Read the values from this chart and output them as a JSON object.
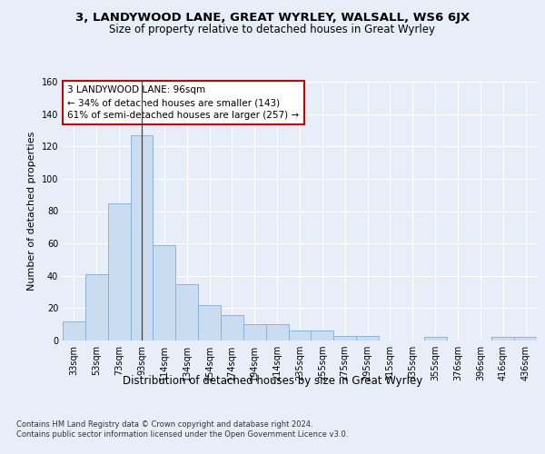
{
  "title1": "3, LANDYWOOD LANE, GREAT WYRLEY, WALSALL, WS6 6JX",
  "title2": "Size of property relative to detached houses in Great Wyrley",
  "xlabel": "Distribution of detached houses by size in Great Wyrley",
  "ylabel": "Number of detached properties",
  "categories": [
    "33sqm",
    "53sqm",
    "73sqm",
    "93sqm",
    "114sqm",
    "134sqm",
    "154sqm",
    "174sqm",
    "194sqm",
    "214sqm",
    "235sqm",
    "255sqm",
    "275sqm",
    "295sqm",
    "315sqm",
    "335sqm",
    "355sqm",
    "376sqm",
    "396sqm",
    "416sqm",
    "436sqm"
  ],
  "values": [
    12,
    41,
    85,
    127,
    59,
    35,
    22,
    16,
    10,
    10,
    6,
    6,
    3,
    3,
    0,
    0,
    2,
    0,
    0,
    2,
    2
  ],
  "bar_color": "#c9dcf0",
  "bar_edge_color": "#8ab4d8",
  "ylim": [
    0,
    160
  ],
  "yticks": [
    0,
    20,
    40,
    60,
    80,
    100,
    120,
    140,
    160
  ],
  "annotation_text": "3 LANDYWOOD LANE: 96sqm\n← 34% of detached houses are smaller (143)\n61% of semi-detached houses are larger (257) →",
  "annotation_box_color": "#ffffff",
  "annotation_box_edge": "#cc0000",
  "subject_bar_index": 3,
  "footer1": "Contains HM Land Registry data © Crown copyright and database right 2024.",
  "footer2": "Contains public sector information licensed under the Open Government Licence v3.0.",
  "bg_color": "#e8eef8",
  "plot_bg_color": "#e8eef8",
  "grid_color": "#ffffff",
  "title1_fontsize": 9.5,
  "title2_fontsize": 8.5,
  "xlabel_fontsize": 8.5,
  "ylabel_fontsize": 8.0,
  "tick_fontsize": 7.0,
  "annotation_fontsize": 7.5,
  "footer_fontsize": 6.0
}
